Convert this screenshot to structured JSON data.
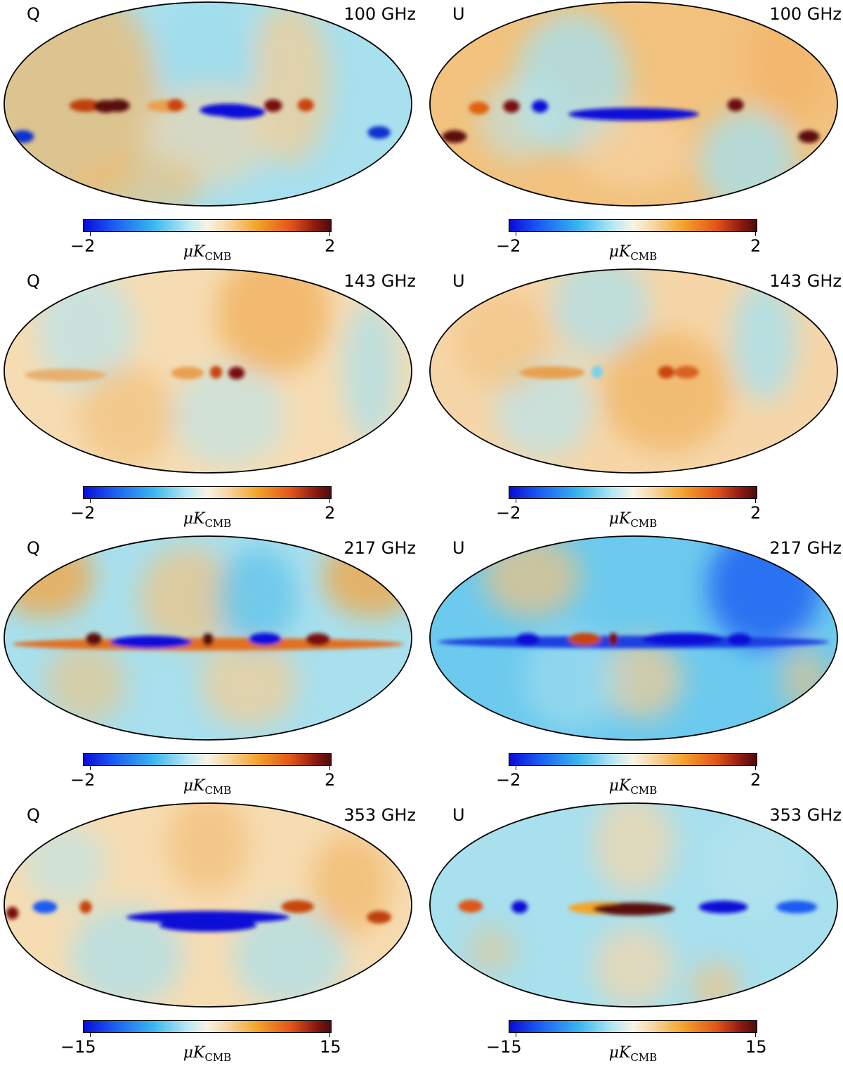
{
  "colormap": {
    "stops": [
      "#0a0ad8",
      "#38b6ee",
      "#f8f2e6",
      "#f4a42c",
      "#e05418",
      "#4a0c0c"
    ]
  },
  "chart_data": [
    {
      "type": "heatmap",
      "stokes": "Q",
      "frequency": "100 GHz",
      "colorbar": {
        "min": "−2",
        "max": "2",
        "unit_symbol": "μK",
        "unit_subscript": "CMB"
      }
    },
    {
      "type": "heatmap",
      "stokes": "U",
      "frequency": "100 GHz",
      "colorbar": {
        "min": "−2",
        "max": "2",
        "unit_symbol": "μK",
        "unit_subscript": "CMB"
      }
    },
    {
      "type": "heatmap",
      "stokes": "Q",
      "frequency": "143 GHz",
      "colorbar": {
        "min": "−2",
        "max": "2",
        "unit_symbol": "μK",
        "unit_subscript": "CMB"
      }
    },
    {
      "type": "heatmap",
      "stokes": "U",
      "frequency": "143 GHz",
      "colorbar": {
        "min": "−2",
        "max": "2",
        "unit_symbol": "μK",
        "unit_subscript": "CMB"
      }
    },
    {
      "type": "heatmap",
      "stokes": "Q",
      "frequency": "217 GHz",
      "colorbar": {
        "min": "−2",
        "max": "2",
        "unit_symbol": "μK",
        "unit_subscript": "CMB"
      }
    },
    {
      "type": "heatmap",
      "stokes": "U",
      "frequency": "217 GHz",
      "colorbar": {
        "min": "−2",
        "max": "2",
        "unit_symbol": "μK",
        "unit_subscript": "CMB"
      }
    },
    {
      "type": "heatmap",
      "stokes": "Q",
      "frequency": "353 GHz",
      "colorbar": {
        "min": "−15",
        "max": "15",
        "unit_symbol": "μK",
        "unit_subscript": "CMB"
      }
    },
    {
      "type": "heatmap",
      "stokes": "U",
      "frequency": "353 GHz",
      "colorbar": {
        "min": "−15",
        "max": "15",
        "unit_symbol": "μK",
        "unit_subscript": "CMB"
      }
    }
  ]
}
